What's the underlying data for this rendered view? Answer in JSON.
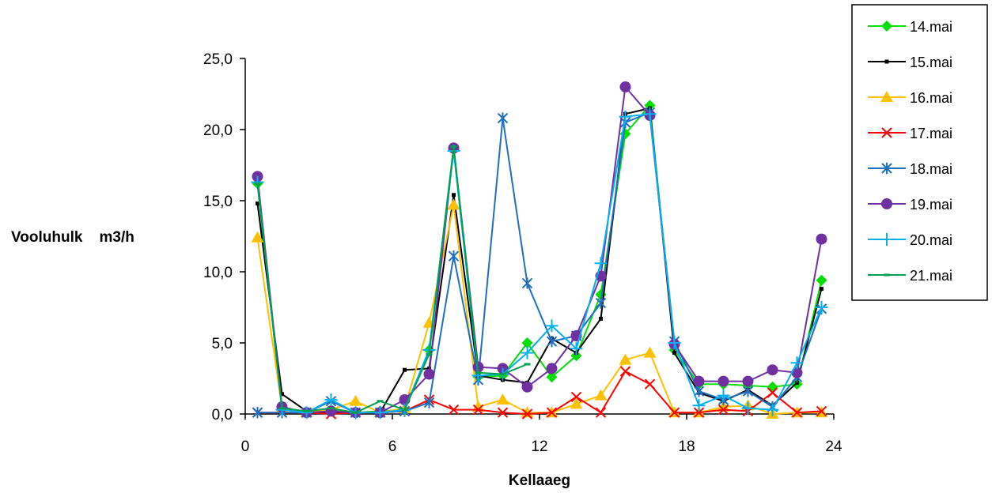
{
  "chart_data": {
    "type": "line",
    "xlabel": "Kellaaeg",
    "ylabel": "Vooluhulk    m3/h",
    "xlim": [
      0,
      24
    ],
    "ylim": [
      0,
      25
    ],
    "x_ticks": [
      0,
      6,
      12,
      18,
      24
    ],
    "x_tick_labels": [
      "0",
      "6",
      "12",
      "18",
      "24"
    ],
    "y_ticks": [
      0,
      5,
      10,
      15,
      20,
      25
    ],
    "y_tick_labels": [
      "0,0",
      "5,0",
      "10,0",
      "15,0",
      "20,0",
      "25,0"
    ],
    "grid": false,
    "legend_position": "top-right",
    "x": [
      0.5,
      1.5,
      2.5,
      3.5,
      4.5,
      5.5,
      6.5,
      7.5,
      8.5,
      9.5,
      10.5,
      11.5,
      12.5,
      13.5,
      14.5,
      15.5,
      16.5,
      17.5,
      18.5,
      19.5,
      20.5,
      21.5,
      22.5,
      23.5
    ],
    "series": [
      {
        "name": "14.mai",
        "color": "#00e000",
        "marker": "diamond",
        "values": [
          16.2,
          0.4,
          0.1,
          0.3,
          0.1,
          0.2,
          0.3,
          4.5,
          18.6,
          2.6,
          2.7,
          5.0,
          2.6,
          4.1,
          8.4,
          19.7,
          21.7,
          4.5,
          2.1,
          2.1,
          2.0,
          1.9,
          2.1,
          9.4
        ]
      },
      {
        "name": "15.mai",
        "color": "#000000",
        "marker": "smallsquare",
        "values": [
          14.8,
          1.4,
          0.2,
          0.1,
          0.1,
          0.1,
          3.1,
          3.2,
          15.4,
          2.7,
          2.4,
          2.2,
          5.3,
          4.3,
          6.7,
          21.1,
          21.5,
          4.3,
          1.5,
          0.9,
          1.7,
          0.6,
          2.2,
          8.8
        ]
      },
      {
        "name": "16.mai",
        "color": "#ffc000",
        "marker": "triangle",
        "values": [
          12.4,
          0.4,
          0.1,
          0.3,
          0.9,
          0.1,
          0.4,
          6.4,
          14.7,
          0.5,
          1.0,
          0.1,
          0.1,
          0.7,
          1.3,
          3.8,
          4.3,
          0.1,
          0.1,
          0.5,
          0.6,
          0.0,
          0.1,
          0.1
        ]
      },
      {
        "name": "17.mai",
        "color": "#ff0000",
        "marker": "x",
        "values": [
          0.1,
          0.1,
          0.1,
          0.0,
          0.1,
          0.1,
          0.2,
          1.0,
          0.3,
          0.3,
          0.1,
          0.0,
          0.1,
          1.2,
          0.1,
          3.0,
          2.1,
          0.1,
          0.1,
          0.3,
          0.2,
          1.5,
          0.1,
          0.2
        ]
      },
      {
        "name": "18.mai",
        "color": "#1f6fbf",
        "marker": "asterisk",
        "values": [
          0.1,
          0.1,
          0.1,
          0.9,
          0.1,
          0.1,
          0.2,
          0.8,
          11.1,
          2.4,
          20.8,
          9.2,
          5.1,
          5.5,
          7.8,
          20.5,
          21.2,
          5.1,
          1.6,
          1.0,
          1.6,
          0.5,
          2.6,
          7.4
        ]
      },
      {
        "name": "19.mai",
        "color": "#7030a0",
        "marker": "circle",
        "values": [
          16.7,
          0.5,
          0.1,
          0.2,
          0.1,
          0.1,
          1.0,
          2.8,
          18.7,
          3.3,
          3.2,
          1.9,
          3.2,
          5.5,
          9.7,
          23.0,
          21.0,
          4.9,
          2.3,
          2.3,
          2.3,
          3.1,
          2.9,
          12.3
        ]
      },
      {
        "name": "20.mai",
        "color": "#00b0f0",
        "marker": "plus",
        "values": [
          16.3,
          0.3,
          0.1,
          1.0,
          0.1,
          0.1,
          0.3,
          4.5,
          18.5,
          2.7,
          2.8,
          4.3,
          6.2,
          4.6,
          10.6,
          20.9,
          21.1,
          5.0,
          0.6,
          1.3,
          0.4,
          0.3,
          3.6,
          7.5
        ]
      },
      {
        "name": "21.mai",
        "color": "#00a050",
        "marker": "dash",
        "values": [
          16.2,
          0.4,
          0.2,
          0.4,
          0.1,
          0.9,
          0.3,
          4.2,
          18.8,
          2.9,
          2.8,
          3.5,
          null,
          null,
          null,
          null,
          null,
          null,
          null,
          null,
          null,
          null,
          null,
          null
        ]
      }
    ]
  }
}
